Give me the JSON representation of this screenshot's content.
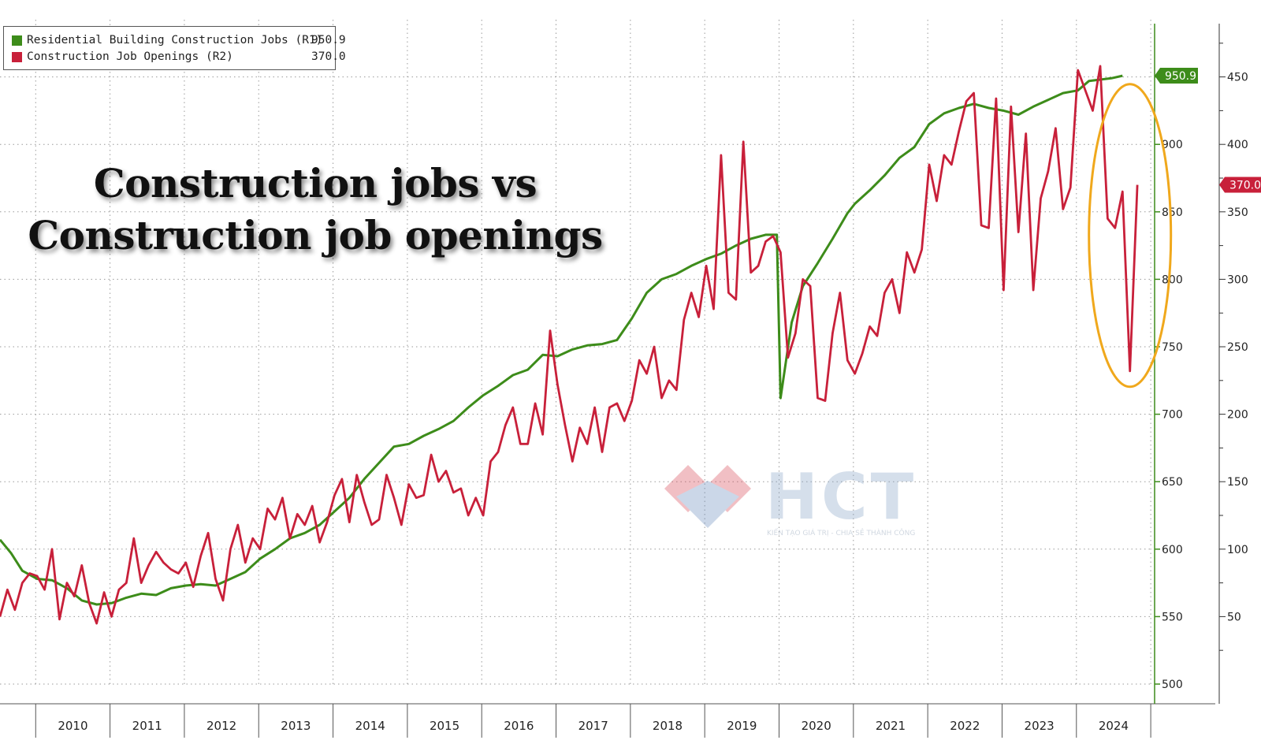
{
  "title": {
    "line1": "Construction jobs vs",
    "line2": "Construction job openings"
  },
  "watermark": {
    "brand": "HCT",
    "tagline": "KIẾN TẠO GIÁ TRỊ - CHIA SẺ THÀNH CÔNG"
  },
  "legend": [
    {
      "label": "Residential Building Construction Jobs (R1)",
      "value": "950.9",
      "color": "#3d8c1a"
    },
    {
      "label": "Construction Job Openings (R2)",
      "value": "370.0",
      "color": "#c8203a"
    }
  ],
  "last_value_tags": {
    "jobs": "950.9",
    "openings": "370.0"
  },
  "colors": {
    "jobs": "#3d8c1a",
    "openings": "#c8203a",
    "highlight_ellipse": "#f0a81c",
    "axis_jobs": "#3d8c1a"
  },
  "chart_data": {
    "type": "line",
    "title": "Construction jobs vs Construction job openings",
    "x_range": [
      2009.5,
      2025.0
    ],
    "x_tick_labels": [
      "2010",
      "2011",
      "2012",
      "2013",
      "2014",
      "2015",
      "2016",
      "2017",
      "2018",
      "2019",
      "2020",
      "2021",
      "2022",
      "2023",
      "2024"
    ],
    "grid": true,
    "legend_position": "top-left",
    "axes": {
      "R1": {
        "range": [
          500,
          1000
        ],
        "ticks": [
          500,
          550,
          600,
          650,
          700,
          750,
          800,
          850,
          900,
          950
        ]
      },
      "R2": {
        "range": [
          0,
          500
        ],
        "ticks": [
          50,
          100,
          150,
          200,
          250,
          300,
          350,
          400,
          450
        ]
      }
    },
    "series": [
      {
        "name": "Residential Building Construction Jobs (R1)",
        "axis": "R1",
        "points": [
          [
            2009.5,
            607
          ],
          [
            2009.65,
            597
          ],
          [
            2009.8,
            584
          ],
          [
            2010.0,
            578
          ],
          [
            2010.2,
            577
          ],
          [
            2010.4,
            571
          ],
          [
            2010.6,
            562
          ],
          [
            2010.8,
            559
          ],
          [
            2011.0,
            560
          ],
          [
            2011.2,
            564
          ],
          [
            2011.4,
            567
          ],
          [
            2011.6,
            566
          ],
          [
            2011.8,
            571
          ],
          [
            2012.0,
            573
          ],
          [
            2012.2,
            574
          ],
          [
            2012.4,
            573
          ],
          [
            2012.6,
            578
          ],
          [
            2012.8,
            583
          ],
          [
            2013.0,
            593
          ],
          [
            2013.2,
            600
          ],
          [
            2013.4,
            608
          ],
          [
            2013.6,
            612
          ],
          [
            2013.8,
            618
          ],
          [
            2014.0,
            628
          ],
          [
            2014.2,
            638
          ],
          [
            2014.4,
            652
          ],
          [
            2014.6,
            664
          ],
          [
            2014.8,
            676
          ],
          [
            2015.0,
            678
          ],
          [
            2015.2,
            684
          ],
          [
            2015.4,
            689
          ],
          [
            2015.6,
            695
          ],
          [
            2015.8,
            705
          ],
          [
            2016.0,
            714
          ],
          [
            2016.2,
            721
          ],
          [
            2016.4,
            729
          ],
          [
            2016.6,
            733
          ],
          [
            2016.8,
            744
          ],
          [
            2017.0,
            743
          ],
          [
            2017.2,
            748
          ],
          [
            2017.4,
            751
          ],
          [
            2017.6,
            752
          ],
          [
            2017.8,
            755
          ],
          [
            2018.0,
            771
          ],
          [
            2018.2,
            790
          ],
          [
            2018.4,
            800
          ],
          [
            2018.6,
            804
          ],
          [
            2018.8,
            810
          ],
          [
            2019.0,
            815
          ],
          [
            2019.2,
            819
          ],
          [
            2019.4,
            825
          ],
          [
            2019.6,
            830
          ],
          [
            2019.8,
            833
          ],
          [
            2019.95,
            833
          ],
          [
            2020.0,
            712
          ],
          [
            2020.15,
            768
          ],
          [
            2020.3,
            795
          ],
          [
            2020.5,
            812
          ],
          [
            2020.7,
            830
          ],
          [
            2020.9,
            849
          ],
          [
            2021.0,
            856
          ],
          [
            2021.2,
            866
          ],
          [
            2021.4,
            877
          ],
          [
            2021.6,
            890
          ],
          [
            2021.8,
            898
          ],
          [
            2022.0,
            915
          ],
          [
            2022.2,
            923
          ],
          [
            2022.4,
            927
          ],
          [
            2022.6,
            930
          ],
          [
            2022.8,
            927
          ],
          [
            2023.0,
            925
          ],
          [
            2023.2,
            922
          ],
          [
            2023.4,
            928
          ],
          [
            2023.6,
            933
          ],
          [
            2023.8,
            938
          ],
          [
            2024.0,
            940
          ],
          [
            2024.15,
            947
          ],
          [
            2024.3,
            948
          ],
          [
            2024.45,
            949
          ],
          [
            2024.6,
            950.9
          ]
        ]
      },
      {
        "name": "Construction Job Openings (R2)",
        "axis": "R2",
        "points": [
          [
            2009.5,
            50
          ],
          [
            2009.6,
            70
          ],
          [
            2009.7,
            55
          ],
          [
            2009.8,
            75
          ],
          [
            2009.9,
            82
          ],
          [
            2010.0,
            80
          ],
          [
            2010.1,
            70
          ],
          [
            2010.2,
            100
          ],
          [
            2010.3,
            48
          ],
          [
            2010.4,
            75
          ],
          [
            2010.5,
            65
          ],
          [
            2010.6,
            88
          ],
          [
            2010.7,
            60
          ],
          [
            2010.8,
            45
          ],
          [
            2010.9,
            68
          ],
          [
            2011.0,
            50
          ],
          [
            2011.1,
            70
          ],
          [
            2011.2,
            75
          ],
          [
            2011.3,
            108
          ],
          [
            2011.4,
            75
          ],
          [
            2011.5,
            88
          ],
          [
            2011.6,
            98
          ],
          [
            2011.7,
            90
          ],
          [
            2011.8,
            85
          ],
          [
            2011.9,
            82
          ],
          [
            2012.0,
            90
          ],
          [
            2012.1,
            72
          ],
          [
            2012.2,
            95
          ],
          [
            2012.3,
            112
          ],
          [
            2012.4,
            78
          ],
          [
            2012.5,
            62
          ],
          [
            2012.6,
            100
          ],
          [
            2012.7,
            118
          ],
          [
            2012.8,
            90
          ],
          [
            2012.9,
            108
          ],
          [
            2013.0,
            100
          ],
          [
            2013.1,
            130
          ],
          [
            2013.2,
            122
          ],
          [
            2013.3,
            138
          ],
          [
            2013.4,
            108
          ],
          [
            2013.5,
            126
          ],
          [
            2013.6,
            118
          ],
          [
            2013.7,
            132
          ],
          [
            2013.8,
            105
          ],
          [
            2013.9,
            120
          ],
          [
            2014.0,
            140
          ],
          [
            2014.1,
            152
          ],
          [
            2014.2,
            120
          ],
          [
            2014.3,
            155
          ],
          [
            2014.4,
            135
          ],
          [
            2014.5,
            118
          ],
          [
            2014.6,
            122
          ],
          [
            2014.7,
            155
          ],
          [
            2014.8,
            138
          ],
          [
            2014.9,
            118
          ],
          [
            2015.0,
            148
          ],
          [
            2015.1,
            138
          ],
          [
            2015.2,
            140
          ],
          [
            2015.3,
            170
          ],
          [
            2015.4,
            150
          ],
          [
            2015.5,
            158
          ],
          [
            2015.6,
            142
          ],
          [
            2015.7,
            145
          ],
          [
            2015.8,
            125
          ],
          [
            2015.9,
            138
          ],
          [
            2016.0,
            125
          ],
          [
            2016.1,
            165
          ],
          [
            2016.2,
            172
          ],
          [
            2016.3,
            192
          ],
          [
            2016.4,
            205
          ],
          [
            2016.5,
            178
          ],
          [
            2016.6,
            178
          ],
          [
            2016.7,
            208
          ],
          [
            2016.8,
            185
          ],
          [
            2016.9,
            262
          ],
          [
            2017.0,
            222
          ],
          [
            2017.1,
            192
          ],
          [
            2017.2,
            165
          ],
          [
            2017.3,
            190
          ],
          [
            2017.4,
            178
          ],
          [
            2017.5,
            205
          ],
          [
            2017.6,
            172
          ],
          [
            2017.7,
            205
          ],
          [
            2017.8,
            208
          ],
          [
            2017.9,
            195
          ],
          [
            2018.0,
            210
          ],
          [
            2018.1,
            240
          ],
          [
            2018.2,
            230
          ],
          [
            2018.3,
            250
          ],
          [
            2018.4,
            212
          ],
          [
            2018.5,
            225
          ],
          [
            2018.6,
            218
          ],
          [
            2018.7,
            270
          ],
          [
            2018.8,
            290
          ],
          [
            2018.9,
            272
          ],
          [
            2019.0,
            310
          ],
          [
            2019.1,
            278
          ],
          [
            2019.2,
            392
          ],
          [
            2019.3,
            290
          ],
          [
            2019.4,
            285
          ],
          [
            2019.5,
            402
          ],
          [
            2019.6,
            305
          ],
          [
            2019.7,
            310
          ],
          [
            2019.8,
            328
          ],
          [
            2019.9,
            332
          ],
          [
            2020.0,
            320
          ],
          [
            2020.1,
            242
          ],
          [
            2020.2,
            260
          ],
          [
            2020.3,
            300
          ],
          [
            2020.4,
            295
          ],
          [
            2020.5,
            212
          ],
          [
            2020.6,
            210
          ],
          [
            2020.7,
            260
          ],
          [
            2020.8,
            290
          ],
          [
            2020.9,
            240
          ],
          [
            2021.0,
            230
          ],
          [
            2021.1,
            245
          ],
          [
            2021.2,
            265
          ],
          [
            2021.3,
            258
          ],
          [
            2021.4,
            290
          ],
          [
            2021.5,
            300
          ],
          [
            2021.6,
            275
          ],
          [
            2021.7,
            320
          ],
          [
            2021.8,
            305
          ],
          [
            2021.9,
            322
          ],
          [
            2022.0,
            385
          ],
          [
            2022.1,
            358
          ],
          [
            2022.2,
            392
          ],
          [
            2022.3,
            385
          ],
          [
            2022.4,
            410
          ],
          [
            2022.5,
            432
          ],
          [
            2022.6,
            438
          ],
          [
            2022.7,
            340
          ],
          [
            2022.8,
            338
          ],
          [
            2022.9,
            434
          ],
          [
            2023.0,
            292
          ],
          [
            2023.1,
            428
          ],
          [
            2023.2,
            335
          ],
          [
            2023.3,
            408
          ],
          [
            2023.4,
            292
          ],
          [
            2023.5,
            360
          ],
          [
            2023.6,
            380
          ],
          [
            2023.7,
            412
          ],
          [
            2023.8,
            352
          ],
          [
            2023.9,
            368
          ],
          [
            2024.0,
            455
          ],
          [
            2024.1,
            440
          ],
          [
            2024.2,
            425
          ],
          [
            2024.3,
            458
          ],
          [
            2024.4,
            345
          ],
          [
            2024.5,
            338
          ],
          [
            2024.6,
            365
          ],
          [
            2024.7,
            232
          ],
          [
            2024.8,
            370
          ]
        ]
      }
    ],
    "annotations": [
      "highlight ellipse around 2024 openings drop"
    ]
  }
}
